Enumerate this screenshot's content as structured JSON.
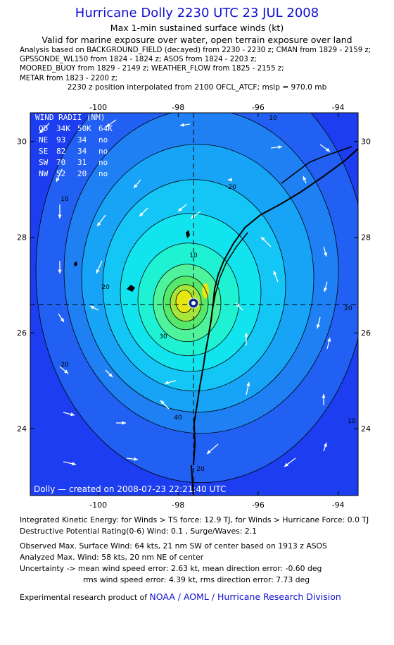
{
  "header": {
    "title": "Hurricane Dolly 2230 UTC 23 JUL 2008",
    "subtitle1": "Max 1-min sustained surface winds (kt)",
    "subtitle2": "Valid for marine exposure over water, open terrain exposure over land",
    "analysis_lines": [
      "Analysis based on  BACKGROUND_FIELD (decayed) from 2230 - 2230 z;  CMAN from 1829 - 2159 z;",
      "GPSSONDE_WL150 from 1824 - 1824 z;  ASOS from 1824 - 2203 z;",
      "MOORED_BUOY from 1829 - 2149 z;  WEATHER_FLOW from 1825 - 2155 z;",
      "METAR from 1823 - 2200 z;"
    ],
    "position_line": "2230 z position interpolated from 2100 OFCL_ATCF; mslp = 970.0 mb"
  },
  "chart_data": {
    "type": "heatmap",
    "variable": "Max 1-min sustained surface winds (kt)",
    "x_ticks": [
      "-100",
      "-98",
      "-96",
      "-94"
    ],
    "y_ticks": [
      "30",
      "28",
      "26",
      "24"
    ],
    "xlim": [
      -101.7,
      -93.5
    ],
    "ylim": [
      22.6,
      30.6
    ],
    "center": {
      "lon": -97.6,
      "lat": 26.7
    },
    "contour_labels": [
      "10",
      "20",
      "30",
      "40",
      "20",
      "20",
      "10",
      "20",
      "10",
      "10",
      "20"
    ],
    "contour_levels_kt": [
      10,
      15,
      20,
      25,
      30,
      35,
      40,
      45,
      50,
      55
    ],
    "wind_radii": {
      "title": "WIND RADII (NM)",
      "columns": [
        "QD",
        "34K",
        "50K",
        "64K"
      ],
      "rows": [
        [
          "NE",
          "93",
          "34",
          "no"
        ],
        [
          "SE",
          "82",
          "34",
          "no"
        ],
        [
          "SW",
          "70",
          "31",
          "no"
        ],
        [
          "NW",
          "52",
          "20",
          "no"
        ]
      ]
    },
    "credit": "Dolly — created on 2008-07-23 22:21:40 UTC",
    "colors": {
      "fill": [
        "#1c3ef0",
        "#2160f2",
        "#1f80f4",
        "#17a3f6",
        "#13c6f5",
        "#12e4ef",
        "#1ff2d2",
        "#4ef39c",
        "#55e86a",
        "#a6e63a",
        "#e6e612"
      ],
      "land_line": "#000000",
      "barbs": "#ffffff"
    }
  },
  "footer": {
    "ike": "Integrated Kinetic Energy:  for Winds > TS force: 12.9 TJ,  for Winds > Hurricane Force: 0.0 TJ",
    "dpr": "Destructive Potential Rating(0-6)   Wind: 0.1 , Surge/Waves: 2.1",
    "obs_max": "Observed Max. Surface Wind: 64 kts, 21 nm SW of center based on 1913 z ASOS",
    "an_max": "Analyzed Max. Wind: 58 kts, 20 nm NE of center",
    "unc1": "Uncertainty -> mean wind speed error: 2.63 kt,   mean direction error:  -0.60 deg",
    "unc2": "rms wind speed error: 4.39 kt,   rms direction error: 7.73 deg",
    "credit_prefix": "Experimental research product of",
    "credit_org": "NOAA / AOML / Hurricane Research Division"
  }
}
